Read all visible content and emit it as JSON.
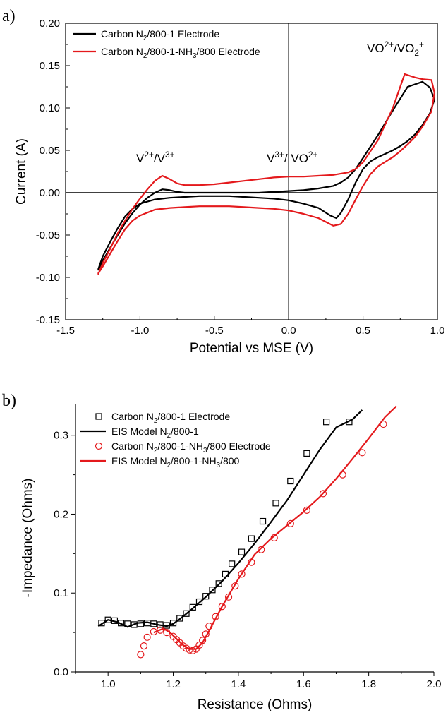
{
  "chart_data": [
    {
      "panel": "a)",
      "type": "line",
      "xlabel": "Potential vs MSE (V)",
      "ylabel": "Current (A)",
      "xlim": [
        -1.5,
        1.0
      ],
      "ylim": [
        -0.15,
        0.2
      ],
      "xticks": [
        "-1.5",
        "-1.0",
        "-0.5",
        "0.0",
        "0.5",
        "1.0"
      ],
      "yticks": [
        "-0.15",
        "-0.10",
        "-0.05",
        "0.00",
        "0.05",
        "0.10",
        "0.15",
        "0.20"
      ],
      "legend_position": "top-left",
      "annotations": [
        {
          "text": "V2+/V3+",
          "x": -0.88,
          "y": 0.036
        },
        {
          "text": "V3+/ VO2+",
          "x": -0.1,
          "y": 0.036
        },
        {
          "text": "VO2+/VO2+",
          "x": 0.65,
          "y": 0.168
        }
      ],
      "series": [
        {
          "name": "Carbon N2/800-1 Electrode",
          "color": "#000000",
          "x": [
            -1.28,
            -1.25,
            -1.2,
            -1.15,
            -1.1,
            -1.05,
            -1.0,
            -0.95,
            -0.9,
            -0.85,
            -0.8,
            -0.75,
            -0.7,
            -0.6,
            -0.5,
            -0.4,
            -0.3,
            -0.2,
            -0.1,
            0.0,
            0.1,
            0.2,
            0.3,
            0.35,
            0.4,
            0.45,
            0.5,
            0.6,
            0.7,
            0.8,
            0.9,
            0.95,
            0.98,
            0.95,
            0.9,
            0.85,
            0.8,
            0.75,
            0.7,
            0.6,
            0.55,
            0.5,
            0.45,
            0.4,
            0.35,
            0.32,
            0.28,
            0.2,
            0.1,
            0.0,
            -0.1,
            -0.2,
            -0.3,
            -0.4,
            -0.5,
            -0.6,
            -0.7,
            -0.8,
            -0.9,
            -1.0,
            -1.05,
            -1.1,
            -1.15,
            -1.2,
            -1.25,
            -1.28
          ],
          "y": [
            -0.091,
            -0.08,
            -0.065,
            -0.05,
            -0.036,
            -0.024,
            -0.014,
            -0.006,
            0.0,
            0.004,
            0.003,
            0.001,
            0.0,
            0.0,
            0.0,
            0.0,
            0.0,
            0.0,
            0.001,
            0.002,
            0.003,
            0.005,
            0.008,
            0.012,
            0.018,
            0.028,
            0.041,
            0.068,
            0.097,
            0.125,
            0.131,
            0.124,
            0.11,
            0.094,
            0.08,
            0.069,
            0.061,
            0.055,
            0.05,
            0.042,
            0.037,
            0.028,
            0.012,
            -0.008,
            -0.024,
            -0.03,
            -0.027,
            -0.018,
            -0.013,
            -0.009,
            -0.007,
            -0.006,
            -0.005,
            -0.004,
            -0.004,
            -0.004,
            -0.005,
            -0.006,
            -0.008,
            -0.013,
            -0.019,
            -0.028,
            -0.042,
            -0.058,
            -0.075,
            -0.09
          ]
        },
        {
          "name": "Carbon N2/800-1-NH3/800 Electrode",
          "color": "#e4191c",
          "x": [
            -1.28,
            -1.25,
            -1.2,
            -1.15,
            -1.1,
            -1.05,
            -1.0,
            -0.95,
            -0.9,
            -0.85,
            -0.8,
            -0.75,
            -0.7,
            -0.6,
            -0.5,
            -0.4,
            -0.3,
            -0.2,
            -0.1,
            0.0,
            0.1,
            0.2,
            0.3,
            0.4,
            0.45,
            0.5,
            0.6,
            0.7,
            0.78,
            0.85,
            0.9,
            0.96,
            0.98,
            0.96,
            0.9,
            0.85,
            0.8,
            0.75,
            0.7,
            0.6,
            0.55,
            0.5,
            0.45,
            0.4,
            0.35,
            0.3,
            0.2,
            0.1,
            0.0,
            -0.1,
            -0.2,
            -0.3,
            -0.4,
            -0.5,
            -0.6,
            -0.7,
            -0.8,
            -0.9,
            -1.0,
            -1.05,
            -1.1,
            -1.15,
            -1.2,
            -1.25,
            -1.28
          ],
          "y": [
            -0.096,
            -0.083,
            -0.066,
            -0.048,
            -0.033,
            -0.019,
            -0.007,
            0.004,
            0.014,
            0.02,
            0.016,
            0.011,
            0.009,
            0.009,
            0.01,
            0.012,
            0.014,
            0.016,
            0.018,
            0.019,
            0.019,
            0.02,
            0.021,
            0.024,
            0.028,
            0.036,
            0.062,
            0.1,
            0.14,
            0.136,
            0.134,
            0.133,
            0.118,
            0.096,
            0.078,
            0.066,
            0.057,
            0.049,
            0.042,
            0.031,
            0.022,
            0.008,
            -0.008,
            -0.025,
            -0.037,
            -0.039,
            -0.03,
            -0.025,
            -0.021,
            -0.019,
            -0.018,
            -0.017,
            -0.016,
            -0.016,
            -0.016,
            -0.017,
            -0.018,
            -0.02,
            -0.027,
            -0.033,
            -0.043,
            -0.057,
            -0.072,
            -0.087,
            -0.095
          ]
        }
      ]
    },
    {
      "panel": "b)",
      "type": "scatter",
      "xlabel": "Resistance (Ohms)",
      "ylabel": "-Impedance (Ohms)",
      "xlim": [
        0.9,
        2.0
      ],
      "ylim": [
        0.0,
        0.34
      ],
      "xticks": [
        "1.0",
        "1.2",
        "1.4",
        "1.6",
        "1.8",
        "2.0"
      ],
      "yticks": [
        "0.0",
        "0.1",
        "0.2",
        "0.3"
      ],
      "legend_position": "top-left",
      "series": [
        {
          "name": "Carbon N2/800-1 Electrode",
          "kind": "markers",
          "marker": "square",
          "color": "#000000",
          "x": [
            0.98,
            1.0,
            1.02,
            1.04,
            1.06,
            1.08,
            1.1,
            1.12,
            1.14,
            1.16,
            1.18,
            1.2,
            1.22,
            1.24,
            1.26,
            1.28,
            1.3,
            1.32,
            1.34,
            1.36,
            1.38,
            1.41,
            1.44,
            1.475,
            1.515,
            1.56,
            1.61,
            1.67,
            1.74
          ],
          "y": [
            0.062,
            0.066,
            0.065,
            0.062,
            0.061,
            0.06,
            0.061,
            0.062,
            0.061,
            0.06,
            0.059,
            0.062,
            0.068,
            0.074,
            0.082,
            0.089,
            0.096,
            0.104,
            0.112,
            0.124,
            0.137,
            0.152,
            0.169,
            0.191,
            0.214,
            0.242,
            0.277,
            0.317,
            0.317
          ]
        },
        {
          "name": "EIS Model N2/800-1",
          "kind": "line",
          "color": "#000000",
          "x": [
            0.97,
            1.0,
            1.03,
            1.06,
            1.09,
            1.12,
            1.15,
            1.18,
            1.2,
            1.22,
            1.25,
            1.3,
            1.35,
            1.4,
            1.45,
            1.5,
            1.55,
            1.6,
            1.65,
            1.7,
            1.75,
            1.78
          ],
          "y": [
            0.058,
            0.066,
            0.063,
            0.057,
            0.062,
            0.063,
            0.06,
            0.058,
            0.061,
            0.067,
            0.077,
            0.095,
            0.115,
            0.138,
            0.163,
            0.19,
            0.218,
            0.25,
            0.282,
            0.31,
            0.32,
            0.332
          ]
        },
        {
          "name": "Carbon N2/800-1-NH3/800 Electrode",
          "kind": "markers",
          "marker": "circle",
          "color": "#e4191c",
          "x": [
            1.1,
            1.11,
            1.12,
            1.14,
            1.16,
            1.18,
            1.2,
            1.21,
            1.22,
            1.23,
            1.24,
            1.25,
            1.26,
            1.27,
            1.28,
            1.29,
            1.3,
            1.31,
            1.33,
            1.35,
            1.37,
            1.39,
            1.41,
            1.44,
            1.47,
            1.51,
            1.56,
            1.61,
            1.66,
            1.72,
            1.78,
            1.845
          ],
          "y": [
            0.022,
            0.033,
            0.044,
            0.051,
            0.053,
            0.05,
            0.045,
            0.041,
            0.037,
            0.033,
            0.03,
            0.028,
            0.027,
            0.029,
            0.034,
            0.04,
            0.048,
            0.058,
            0.07,
            0.083,
            0.095,
            0.109,
            0.124,
            0.139,
            0.155,
            0.17,
            0.188,
            0.205,
            0.226,
            0.25,
            0.278,
            0.314
          ]
        },
        {
          "name": "EIS Model N2/800-1-NH3/800",
          "kind": "line",
          "color": "#e4191c",
          "x": [
            1.14,
            1.17,
            1.19,
            1.21,
            1.23,
            1.25,
            1.27,
            1.29,
            1.31,
            1.35,
            1.4,
            1.45,
            1.5,
            1.55,
            1.6,
            1.65,
            1.7,
            1.75,
            1.8,
            1.85,
            1.885
          ],
          "y": [
            0.05,
            0.055,
            0.05,
            0.042,
            0.034,
            0.029,
            0.029,
            0.037,
            0.052,
            0.083,
            0.118,
            0.149,
            0.169,
            0.186,
            0.203,
            0.222,
            0.245,
            0.27,
            0.296,
            0.323,
            0.337
          ]
        }
      ]
    }
  ]
}
